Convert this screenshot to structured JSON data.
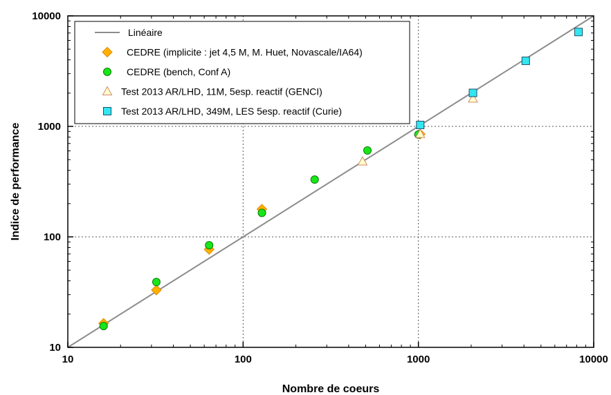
{
  "chart_data": {
    "type": "scatter",
    "xlabel": "Nombre de coeurs",
    "ylabel": "Indice de performance",
    "x_scale": "log",
    "y_scale": "log",
    "xlim": [
      10,
      10000
    ],
    "ylim": [
      10,
      10000
    ],
    "x_ticks": [
      "10",
      "100",
      "1000",
      "10000"
    ],
    "y_ticks": [
      "10",
      "100",
      "1000",
      "10000"
    ],
    "grid": "major dotted",
    "legend_position": "top-left",
    "colors": {
      "line": "#8c8c8c",
      "diamond": "#ffb000",
      "circle": "#19e619",
      "triangle": "#ffffcc",
      "square": "#33e6f0"
    },
    "series": [
      {
        "name": "Linéaire",
        "marker": "line",
        "x": [
          10,
          10000
        ],
        "y": [
          10,
          10000
        ]
      },
      {
        "name": "CEDRE (implicite : jet 4,5 M, M. Huet, Novascale/IA64)",
        "marker": "diamond",
        "x": [
          16,
          32,
          64,
          128,
          1024
        ],
        "y": [
          16.5,
          33,
          77,
          178,
          850
        ]
      },
      {
        "name": "CEDRE (bench, Conf A)",
        "marker": "circle",
        "x": [
          16,
          32,
          64,
          128,
          256,
          512,
          1000
        ],
        "y": [
          15.6,
          39,
          84,
          165,
          330,
          605,
          845
        ]
      },
      {
        "name": "Test 2013 AR/LHD, 11M, 5esp. reactif (GENCI)",
        "marker": "triangle",
        "x": [
          480,
          1024,
          2048
        ],
        "y": [
          480,
          850,
          1780
        ]
      },
      {
        "name": "Test 2013 AR/LHD, 349M, LES 5esp. reactif (Curie)",
        "marker": "square",
        "x": [
          1024,
          2048,
          4096,
          8192
        ],
        "y": [
          1030,
          2010,
          3920,
          7150
        ]
      }
    ]
  }
}
